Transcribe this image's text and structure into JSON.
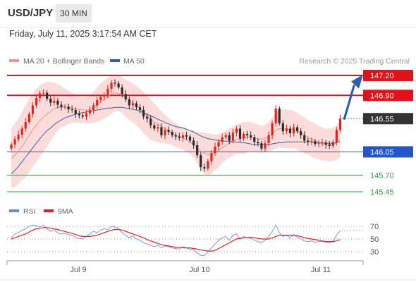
{
  "header": {
    "symbol": "USD/JPY",
    "timeframe": "30 MIN",
    "datetime": "Friday, July 11, 2025 3:17:54 AM CET"
  },
  "chart_data": {
    "type": "candlestick",
    "legend": [
      {
        "label": "MA 20 + Bollinger Bands",
        "color": "#f4908a"
      },
      {
        "label": "MA 50",
        "color": "#2f5fa8"
      }
    ],
    "credit": "Research © 2025 Trading Central",
    "ylim": [
      145.35,
      147.29
    ],
    "x_ticks": [
      "Jul 9",
      "Jul 10",
      "Jul 11"
    ],
    "levels": [
      {
        "value": 147.2,
        "label": "147.20",
        "kind": "resistance",
        "color": "#e0131a"
      },
      {
        "value": 146.9,
        "label": "146.90",
        "kind": "resistance",
        "color": "#e0131a"
      },
      {
        "value": 146.55,
        "label": "146.55",
        "kind": "last-price",
        "color": "#333333"
      },
      {
        "value": 146.05,
        "label": "146.05",
        "kind": "pivot",
        "color": "#2456c9"
      },
      {
        "value": 145.7,
        "label": "145.70",
        "kind": "support",
        "color": "#3f9a3f"
      },
      {
        "value": 145.45,
        "label": "145.45",
        "kind": "support",
        "color": "#3f9a3f"
      }
    ],
    "close": [
      146.16,
      146.24,
      146.31,
      146.4,
      146.5,
      146.62,
      146.75,
      146.86,
      146.93,
      146.94,
      146.85,
      146.79,
      146.82,
      146.76,
      146.72,
      146.73,
      146.69,
      146.68,
      146.62,
      146.6,
      146.58,
      146.63,
      146.68,
      146.75,
      146.83,
      146.88,
      146.9,
      147.0,
      147.09,
      147.08,
      147.02,
      146.92,
      146.84,
      146.75,
      146.78,
      146.72,
      146.68,
      146.58,
      146.55,
      146.45,
      146.4,
      146.42,
      146.3,
      146.38,
      146.35,
      146.3,
      146.28,
      146.26,
      146.3,
      146.28,
      146.22,
      146.15,
      146.0,
      145.82,
      145.8,
      145.91,
      146.03,
      146.13,
      146.2,
      146.27,
      146.3,
      146.22,
      146.34,
      146.4,
      146.25,
      146.32,
      146.3,
      146.27,
      146.2,
      146.18,
      146.1,
      146.18,
      146.3,
      146.48,
      146.7,
      146.48,
      146.36,
      146.4,
      146.33,
      146.42,
      146.36,
      146.3,
      146.22,
      146.2,
      146.21,
      146.17,
      146.18,
      146.19,
      146.16,
      146.14,
      146.2,
      146.38,
      146.55
    ],
    "ma20": [
      145.95,
      146.0,
      146.06,
      146.13,
      146.21,
      146.3,
      146.38,
      146.45,
      146.52,
      146.57,
      146.62,
      146.66,
      146.7,
      146.72,
      146.73,
      146.72,
      146.72,
      146.71,
      146.7,
      146.69,
      146.68,
      146.68,
      146.69,
      146.72,
      146.76,
      146.8,
      146.84,
      146.88,
      146.92,
      146.94,
      146.93,
      146.9,
      146.86,
      146.82,
      146.79,
      146.75,
      146.7,
      146.64,
      146.59,
      146.54,
      146.5,
      146.47,
      146.43,
      146.4,
      146.37,
      146.33,
      146.3,
      146.28,
      146.26,
      146.23,
      146.2,
      146.16,
      146.11,
      146.06,
      146.03,
      146.01,
      146.02,
      146.04,
      146.07,
      146.11,
      146.15,
      146.18,
      146.21,
      146.24,
      146.25,
      146.26,
      146.27,
      146.27,
      146.26,
      146.25,
      146.24,
      146.25,
      146.28,
      146.32,
      146.38,
      146.4,
      146.4,
      146.4,
      146.39,
      146.39,
      146.36,
      146.33,
      146.3,
      146.27,
      146.24,
      146.21,
      146.19,
      146.17,
      146.16,
      146.15,
      146.16,
      146.19,
      146.24
    ],
    "bb_upper": [
      146.4,
      146.48,
      146.55,
      146.65,
      146.75,
      146.85,
      146.93,
      147.0,
      147.05,
      147.08,
      147.1,
      147.1,
      147.09,
      147.07,
      147.04,
      147.0,
      146.97,
      146.94,
      146.91,
      146.89,
      146.87,
      146.88,
      146.91,
      146.95,
      147.02,
      147.08,
      147.12,
      147.16,
      147.2,
      147.21,
      147.2,
      147.17,
      147.14,
      147.11,
      147.08,
      147.04,
      147.0,
      146.95,
      146.9,
      146.84,
      146.78,
      146.72,
      146.66,
      146.61,
      146.56,
      146.52,
      146.48,
      146.45,
      146.42,
      146.4,
      146.38,
      146.36,
      146.35,
      146.34,
      146.34,
      146.33,
      146.32,
      146.31,
      146.32,
      146.34,
      146.37,
      146.4,
      146.43,
      146.46,
      146.48,
      146.5,
      146.5,
      146.5,
      146.48,
      146.46,
      146.44,
      146.46,
      146.5,
      146.57,
      146.65,
      146.68,
      146.69,
      146.69,
      146.68,
      146.67,
      146.64,
      146.6,
      146.57,
      146.53,
      146.5,
      146.47,
      146.44,
      146.42,
      146.4,
      146.4,
      146.41,
      146.45,
      146.52
    ],
    "bb_lower": [
      145.5,
      145.52,
      145.57,
      145.62,
      145.67,
      145.75,
      145.83,
      145.9,
      145.98,
      146.05,
      146.13,
      146.21,
      146.3,
      146.37,
      146.42,
      146.44,
      146.47,
      146.48,
      146.49,
      146.49,
      146.49,
      146.48,
      146.47,
      146.49,
      146.5,
      146.52,
      146.55,
      146.58,
      146.62,
      146.66,
      146.66,
      146.63,
      146.58,
      146.53,
      146.49,
      146.45,
      146.4,
      146.33,
      146.28,
      146.23,
      146.21,
      146.2,
      146.19,
      146.18,
      146.17,
      146.15,
      146.12,
      146.1,
      146.08,
      146.05,
      146.02,
      145.97,
      145.88,
      145.78,
      145.72,
      145.69,
      145.72,
      145.77,
      145.82,
      145.88,
      145.93,
      145.96,
      145.99,
      146.02,
      146.02,
      146.02,
      146.04,
      146.05,
      146.05,
      146.04,
      146.04,
      146.04,
      146.06,
      146.07,
      146.1,
      146.12,
      146.11,
      146.11,
      146.1,
      146.11,
      146.08,
      146.06,
      146.03,
      146.01,
      145.98,
      145.95,
      145.94,
      145.92,
      145.92,
      145.91,
      145.91,
      145.93,
      145.96
    ],
    "ma50": [
      145.72,
      145.77,
      145.83,
      145.9,
      145.97,
      146.04,
      146.11,
      146.18,
      146.25,
      146.31,
      146.37,
      146.41,
      146.46,
      146.5,
      146.53,
      146.56,
      146.58,
      146.6,
      146.62,
      146.63,
      146.64,
      146.65,
      146.66,
      146.67,
      146.68,
      146.69,
      146.7,
      146.71,
      146.71,
      146.72,
      146.72,
      146.72,
      146.71,
      146.7,
      146.69,
      146.68,
      146.66,
      146.64,
      146.62,
      146.59,
      146.57,
      146.54,
      146.52,
      146.49,
      146.47,
      146.45,
      146.43,
      146.42,
      146.41,
      146.39,
      146.37,
      146.35,
      146.32,
      146.29,
      146.27,
      146.25,
      146.24,
      146.23,
      146.22,
      146.21,
      146.21,
      146.21,
      146.2,
      146.2,
      146.19,
      146.19,
      146.18,
      146.17,
      146.16,
      146.16,
      146.16,
      146.16,
      146.16,
      146.17,
      146.18,
      146.19,
      146.19,
      146.2,
      146.2,
      146.2,
      146.2,
      146.2,
      146.2,
      146.2,
      146.2,
      146.19,
      146.19,
      146.19,
      146.18,
      146.18,
      146.18,
      146.19,
      146.2
    ],
    "rsi_panel": {
      "legend": [
        {
          "label": "RSI",
          "color": "#6b88d6"
        },
        {
          "label": "9MA",
          "color": "#e02020"
        }
      ],
      "ticks": [
        "70",
        "50",
        "30"
      ],
      "ylim": [
        20,
        80
      ],
      "rsi": [
        52,
        58,
        60,
        64,
        66,
        70,
        72,
        71,
        69,
        72,
        66,
        62,
        64,
        60,
        58,
        59,
        56,
        56,
        52,
        51,
        50,
        54,
        58,
        62,
        60,
        64,
        66,
        65,
        70,
        69,
        66,
        60,
        56,
        52,
        55,
        50,
        48,
        44,
        42,
        40,
        38,
        40,
        36,
        39,
        38,
        36,
        35,
        34,
        38,
        36,
        34,
        33,
        28,
        24,
        24,
        30,
        36,
        42,
        48,
        52,
        54,
        48,
        56,
        58,
        50,
        54,
        52,
        51,
        48,
        46,
        44,
        48,
        54,
        62,
        72,
        60,
        54,
        56,
        52,
        57,
        53,
        50,
        47,
        46,
        47,
        45,
        46,
        46,
        45,
        44,
        47,
        56,
        63
      ],
      "ma9": [
        50,
        52,
        54,
        56,
        58,
        61,
        64,
        66,
        67,
        68,
        68,
        67,
        66,
        65,
        63,
        62,
        60,
        59,
        57,
        55,
        54,
        54,
        54,
        55,
        56,
        58,
        60,
        62,
        64,
        65,
        65,
        64,
        62,
        60,
        58,
        56,
        54,
        52,
        49,
        47,
        45,
        43,
        41,
        40,
        39,
        38,
        37,
        37,
        36,
        36,
        36,
        35,
        34,
        33,
        32,
        31,
        31,
        32,
        35,
        38,
        41,
        44,
        47,
        50,
        51,
        52,
        52,
        53,
        52,
        51,
        50,
        50,
        50,
        52,
        54,
        56,
        56,
        56,
        56,
        56,
        55,
        54,
        52,
        51,
        50,
        49,
        48,
        47,
        46,
        46,
        46,
        47,
        49
      ]
    }
  }
}
